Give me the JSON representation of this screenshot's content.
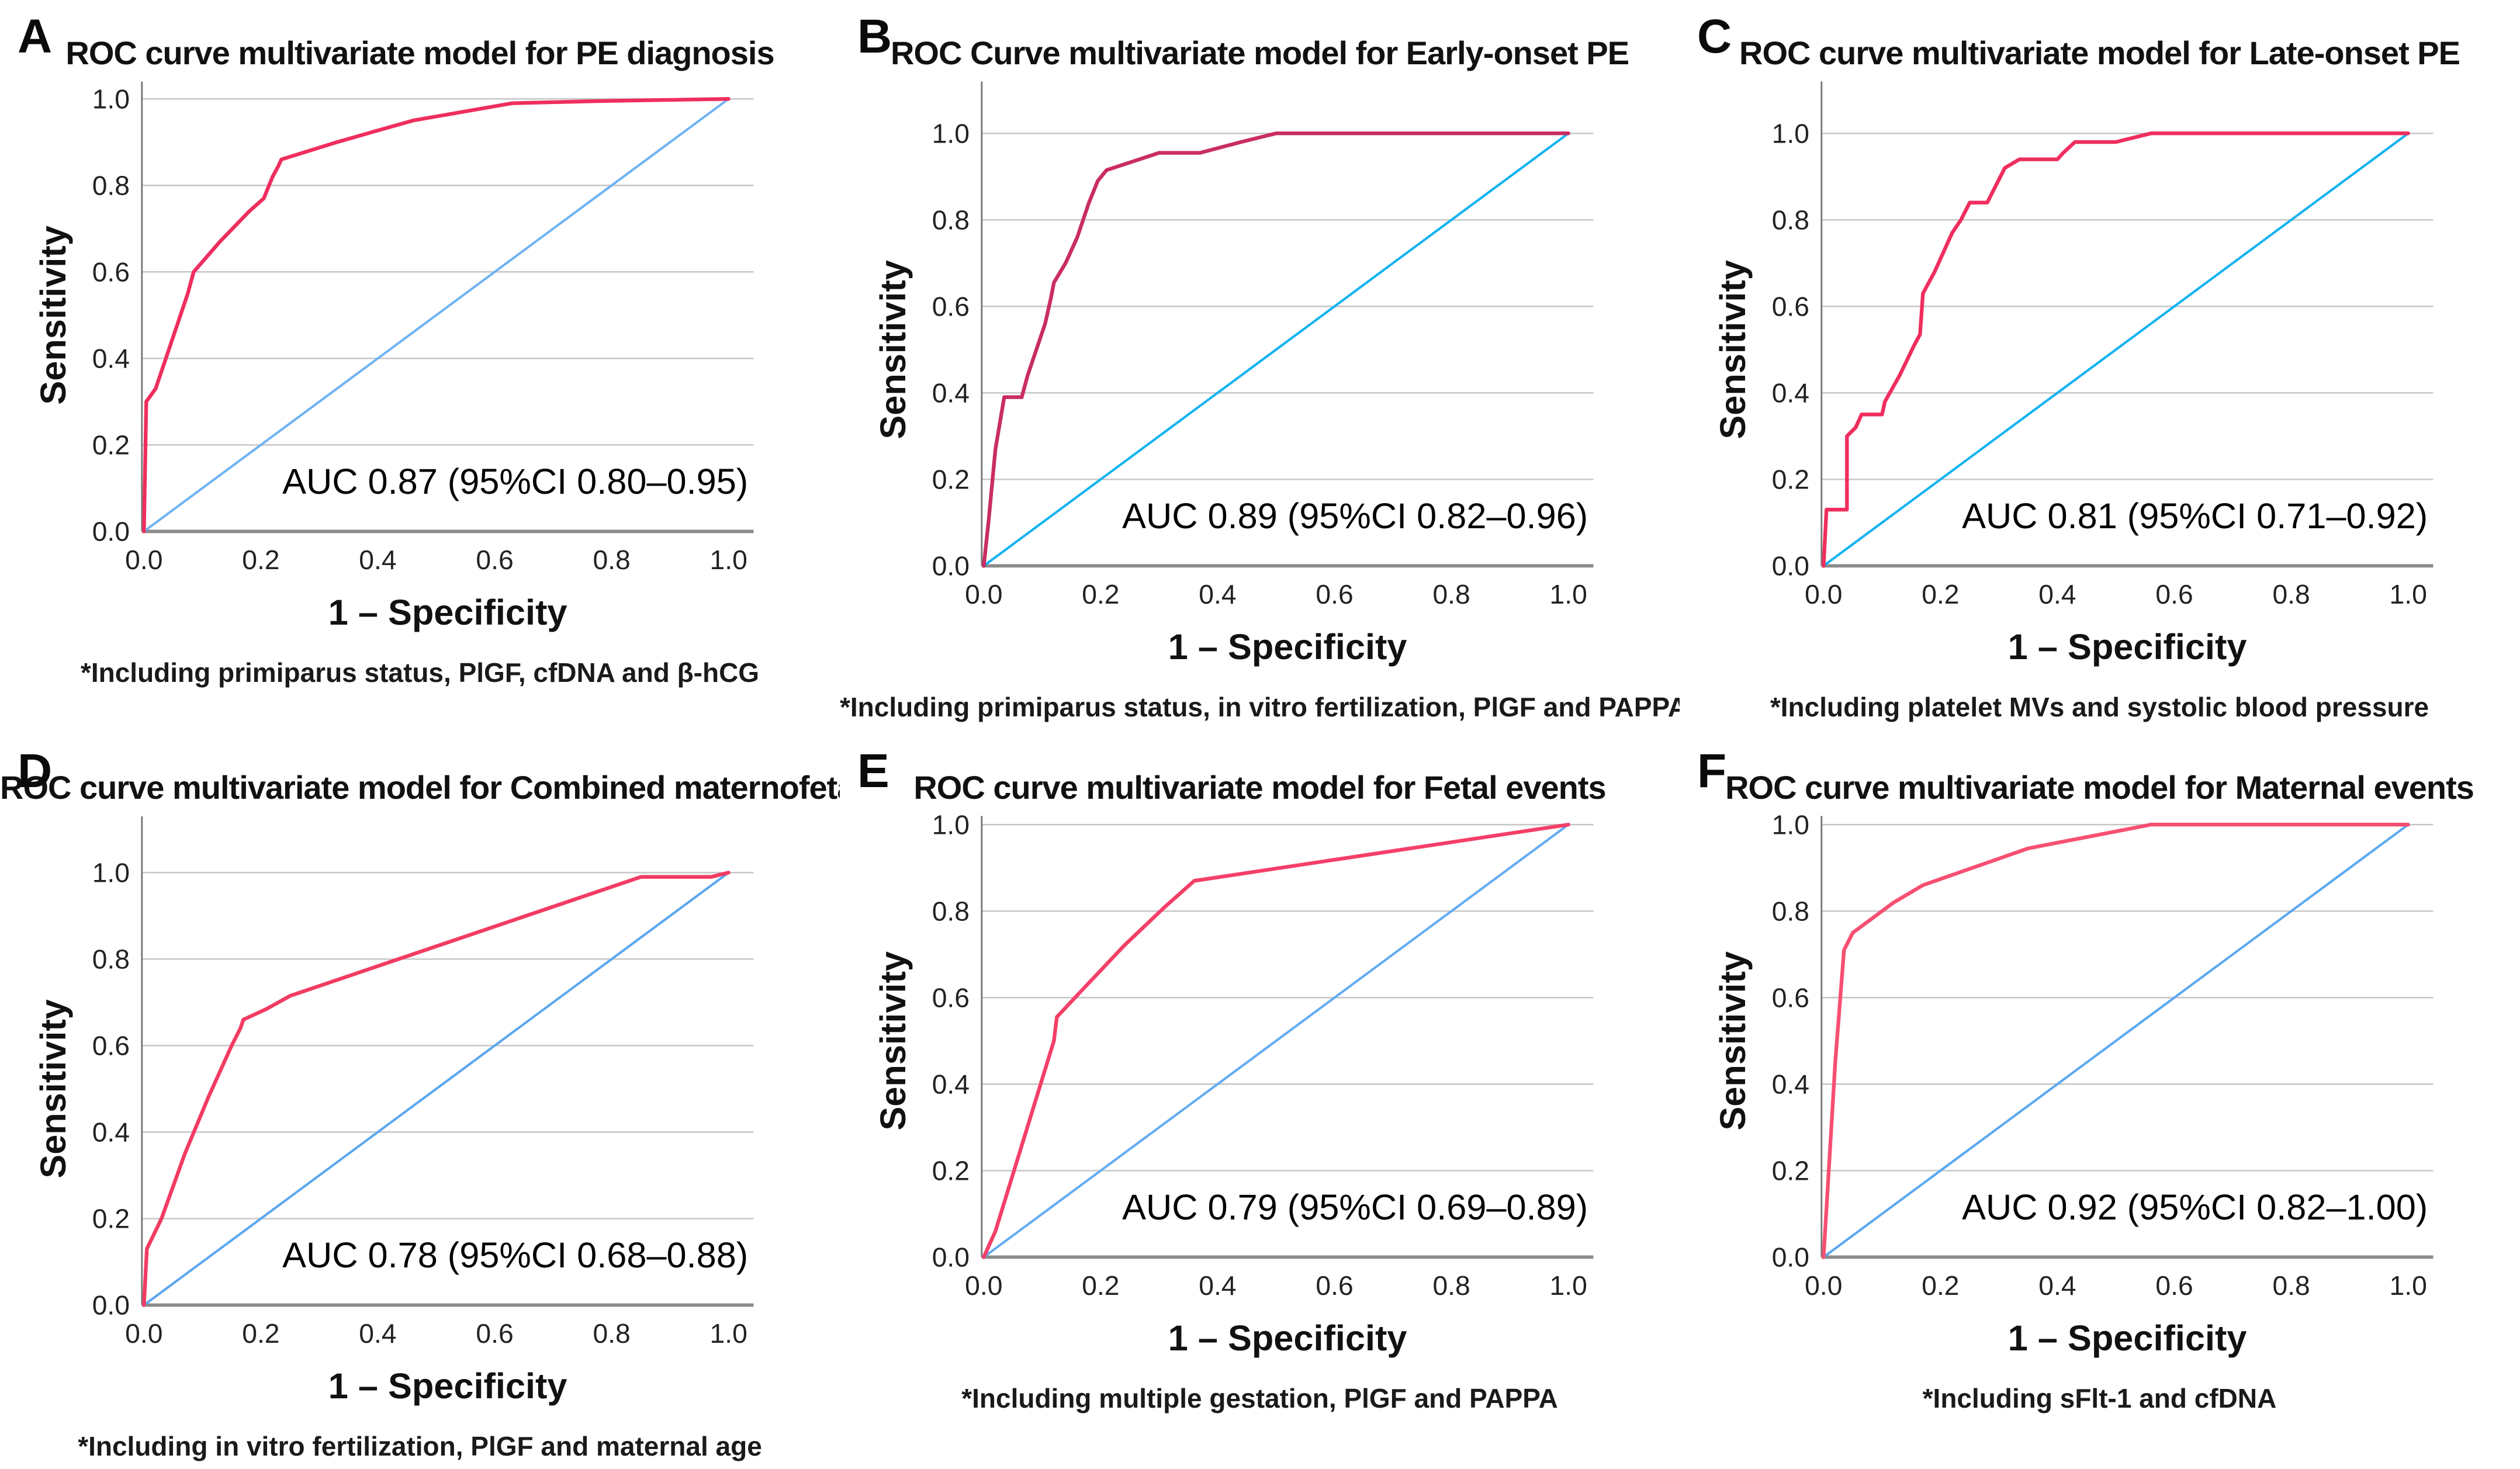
{
  "figure": {
    "xlabel": "1 – Specificity",
    "ylabel": "Sensitivity",
    "x_ticks": [
      "0.0",
      "0.2",
      "0.4",
      "0.6",
      "0.8",
      "1.0"
    ],
    "y_ticks": [
      "1.0",
      "0.8",
      "0.6",
      "0.4",
      "0.2",
      "0.0"
    ],
    "grid_color": "#c7c7c7",
    "baseline_color": "#8b8b8b",
    "axis_color": "#777777"
  },
  "chart_data": [
    {
      "type": "line",
      "letter": "A",
      "title": "ROC curve multivariate model for PE diagnosis",
      "auc": 0.87,
      "auc_label": "AUC 0.87 (95%CI 0.80–0.95)",
      "footnote": "*Including primiparus status, PlGF, cfDNA and β-hCG",
      "xlabel": "1 – Specificity",
      "ylabel": "Sensitivity",
      "xlim": [
        0,
        1
      ],
      "ylim": [
        0,
        1
      ],
      "y_axis_top": 1.04,
      "grid": true,
      "series": [
        {
          "name": "ROC curve",
          "color": "#ef2e5e",
          "points": [
            [
              0,
              0
            ],
            [
              0.004,
              0.3
            ],
            [
              0.02,
              0.33
            ],
            [
              0.05,
              0.45
            ],
            [
              0.075,
              0.55
            ],
            [
              0.08,
              0.575
            ],
            [
              0.085,
              0.6
            ],
            [
              0.13,
              0.67
            ],
            [
              0.18,
              0.74
            ],
            [
              0.205,
              0.77
            ],
            [
              0.22,
              0.82
            ],
            [
              0.23,
              0.845
            ],
            [
              0.235,
              0.86
            ],
            [
              0.33,
              0.9
            ],
            [
              0.46,
              0.95
            ],
            [
              0.63,
              0.99
            ],
            [
              0.78,
              0.995
            ],
            [
              1,
              1
            ]
          ]
        },
        {
          "name": "Reference line",
          "color": "#6fb3f2",
          "points": [
            [
              0,
              0
            ],
            [
              1,
              1
            ]
          ]
        }
      ]
    },
    {
      "type": "line",
      "letter": "B",
      "title": "ROC Curve multivariate model for Early-onset PE",
      "auc": 0.89,
      "auc_label": "AUC 0.89 (95%CI 0.82–0.96)",
      "footnote": "*Including primiparus status, in vitro fertilization, PlGF and PAPPA",
      "xlabel": "1 – Specificity",
      "ylabel": "Sensitivity",
      "xlim": [
        0,
        1
      ],
      "ylim": [
        0,
        1
      ],
      "y_axis_top": 1.12,
      "grid": true,
      "series": [
        {
          "name": "ROC curve",
          "color": "#c92d63",
          "points": [
            [
              0,
              0
            ],
            [
              0.008,
              0.1
            ],
            [
              0.02,
              0.27
            ],
            [
              0.03,
              0.35
            ],
            [
              0.035,
              0.39
            ],
            [
              0.065,
              0.39
            ],
            [
              0.075,
              0.44
            ],
            [
              0.09,
              0.5
            ],
            [
              0.105,
              0.56
            ],
            [
              0.115,
              0.62
            ],
            [
              0.12,
              0.655
            ],
            [
              0.14,
              0.7
            ],
            [
              0.16,
              0.76
            ],
            [
              0.18,
              0.84
            ],
            [
              0.195,
              0.89
            ],
            [
              0.21,
              0.915
            ],
            [
              0.3,
              0.955
            ],
            [
              0.37,
              0.955
            ],
            [
              0.44,
              0.98
            ],
            [
              0.5,
              1.0
            ],
            [
              1,
              1
            ]
          ]
        },
        {
          "name": "Reference line",
          "color": "#10b2f0",
          "points": [
            [
              0,
              0
            ],
            [
              1,
              1
            ]
          ]
        }
      ]
    },
    {
      "type": "line",
      "letter": "C",
      "title": "ROC curve multivariate model for Late-onset PE",
      "auc": 0.81,
      "auc_label": "AUC 0.81 (95%CI 0.71–0.92)",
      "footnote": "*Including platelet MVs and systolic blood pressure",
      "xlabel": "1 – Specificity",
      "ylabel": "Sensitivity",
      "xlim": [
        0,
        1
      ],
      "ylim": [
        0,
        1
      ],
      "y_axis_top": 1.12,
      "grid": true,
      "series": [
        {
          "name": "ROC curve",
          "color": "#ef2e5e",
          "points": [
            [
              0,
              0
            ],
            [
              0.005,
              0.13
            ],
            [
              0.04,
              0.13
            ],
            [
              0.04,
              0.3
            ],
            [
              0.055,
              0.32
            ],
            [
              0.065,
              0.35
            ],
            [
              0.1,
              0.35
            ],
            [
              0.105,
              0.38
            ],
            [
              0.13,
              0.44
            ],
            [
              0.155,
              0.51
            ],
            [
              0.165,
              0.535
            ],
            [
              0.17,
              0.63
            ],
            [
              0.19,
              0.68
            ],
            [
              0.22,
              0.77
            ],
            [
              0.235,
              0.8
            ],
            [
              0.25,
              0.84
            ],
            [
              0.28,
              0.84
            ],
            [
              0.295,
              0.88
            ],
            [
              0.31,
              0.92
            ],
            [
              0.335,
              0.94
            ],
            [
              0.4,
              0.94
            ],
            [
              0.41,
              0.955
            ],
            [
              0.43,
              0.98
            ],
            [
              0.5,
              0.98
            ],
            [
              0.56,
              1.0
            ],
            [
              1,
              1
            ]
          ]
        },
        {
          "name": "Reference line",
          "color": "#10b2f0",
          "points": [
            [
              0,
              0
            ],
            [
              1,
              1
            ]
          ]
        }
      ]
    },
    {
      "type": "line",
      "letter": "D",
      "title": "ROC curve multivariate model for Combined maternofetal",
      "auc": 0.78,
      "auc_label": "AUC 0.78 (95%CI 0.68–0.88)",
      "footnote": "*Including in vitro fertilization, PlGF and maternal age",
      "xlabel": "1 – Specificity",
      "ylabel": "Sensitivity",
      "xlim": [
        0,
        1
      ],
      "ylim": [
        0,
        1
      ],
      "y_axis_top": 1.13,
      "grid": true,
      "series": [
        {
          "name": "ROC curve",
          "color": "#f23b63",
          "points": [
            [
              0,
              0
            ],
            [
              0.005,
              0.13
            ],
            [
              0.03,
              0.2
            ],
            [
              0.07,
              0.35
            ],
            [
              0.11,
              0.48
            ],
            [
              0.15,
              0.6
            ],
            [
              0.165,
              0.64
            ],
            [
              0.17,
              0.66
            ],
            [
              0.21,
              0.685
            ],
            [
              0.25,
              0.715
            ],
            [
              0.85,
              0.99
            ],
            [
              0.97,
              0.99
            ],
            [
              1,
              1
            ]
          ]
        },
        {
          "name": "Reference line",
          "color": "#5aa6ef",
          "points": [
            [
              0,
              0
            ],
            [
              1,
              1
            ]
          ]
        }
      ]
    },
    {
      "type": "line",
      "letter": "E",
      "title": "ROC curve multivariate model for Fetal events",
      "auc": 0.79,
      "auc_label": "AUC 0.79 (95%CI 0.69–0.89)",
      "footnote": "*Including multiple gestation, PlGF and PAPPA",
      "xlabel": "1 – Specificity",
      "ylabel": "Sensitivity",
      "xlim": [
        0,
        1
      ],
      "ylim": [
        0,
        1
      ],
      "y_axis_top": 1.02,
      "grid": true,
      "series": [
        {
          "name": "ROC curve",
          "color": "#f43f68",
          "points": [
            [
              0,
              0
            ],
            [
              0.01,
              0.03
            ],
            [
              0.02,
              0.06
            ],
            [
              0.12,
              0.5
            ],
            [
              0.125,
              0.555
            ],
            [
              0.17,
              0.62
            ],
            [
              0.24,
              0.72
            ],
            [
              0.31,
              0.81
            ],
            [
              0.36,
              0.87
            ],
            [
              1,
              1
            ]
          ]
        },
        {
          "name": "Reference line",
          "color": "#63abf2",
          "points": [
            [
              0,
              0
            ],
            [
              1,
              1
            ]
          ]
        }
      ]
    },
    {
      "type": "line",
      "letter": "F",
      "title": "ROC curve multivariate model for Maternal events",
      "auc": 0.92,
      "auc_label": "AUC 0.92 (95%CI 0.82–1.00)",
      "footnote": "*Including sFlt-1 and cfDNA",
      "xlabel": "1 – Specificity",
      "ylabel": "Sensitivity",
      "xlim": [
        0,
        1
      ],
      "ylim": [
        0,
        1
      ],
      "y_axis_top": 1.02,
      "grid": true,
      "series": [
        {
          "name": "ROC curve",
          "color": "#f74f72",
          "points": [
            [
              0,
              0
            ],
            [
              0.02,
              0.45
            ],
            [
              0.035,
              0.71
            ],
            [
              0.05,
              0.75
            ],
            [
              0.12,
              0.82
            ],
            [
              0.17,
              0.86
            ],
            [
              0.35,
              0.945
            ],
            [
              0.56,
              1.0
            ],
            [
              1,
              1
            ]
          ]
        },
        {
          "name": "Reference line",
          "color": "#5aa8f0",
          "points": [
            [
              0,
              0
            ],
            [
              1,
              1
            ]
          ]
        }
      ]
    }
  ]
}
